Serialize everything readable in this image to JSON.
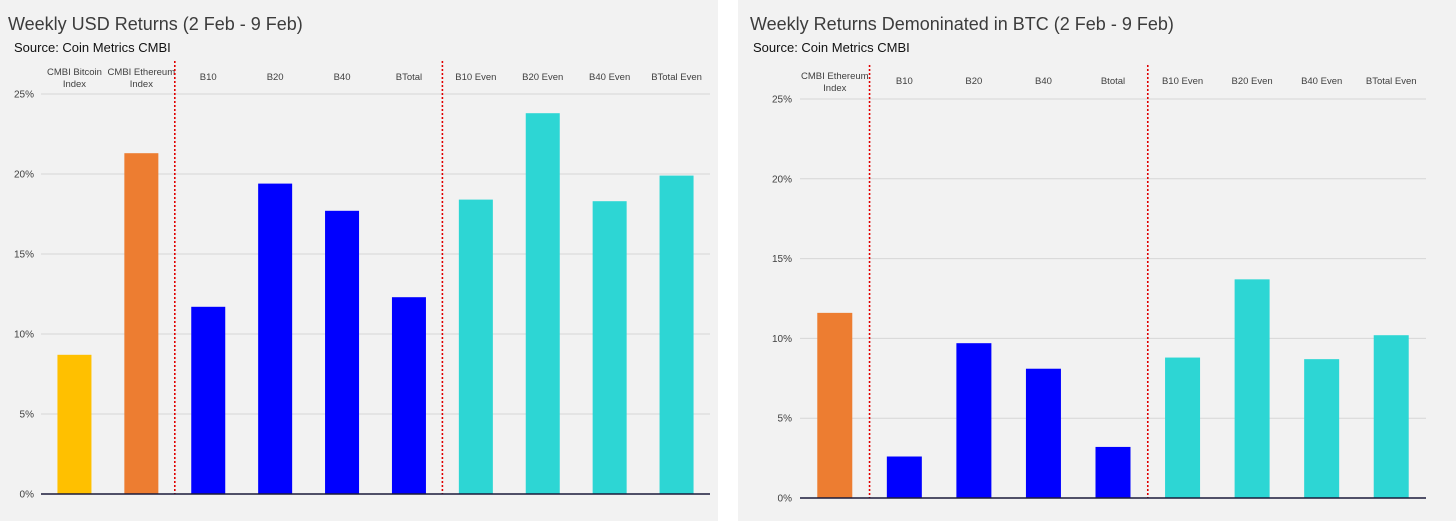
{
  "chart_data": [
    {
      "type": "bar",
      "title": "Weekly USD Returns (2 Feb - 9 Feb)",
      "subtitle": "Source: Coin Metrics CMBI",
      "categories": [
        "CMBI Bitcoin Index",
        "CMBI Ethereum Index",
        "B10",
        "B20",
        "B40",
        "BTotal",
        "B10 Even",
        "B20 Even",
        "B40 Even",
        "BTotal Even"
      ],
      "values": [
        8.7,
        21.3,
        11.7,
        19.4,
        17.7,
        12.3,
        18.4,
        23.8,
        18.3,
        19.9
      ],
      "colors": [
        "#ffc000",
        "#ed7d31",
        "#0000ff",
        "#0000ff",
        "#0000ff",
        "#0000ff",
        "#2dd6d4",
        "#2dd6d4",
        "#2dd6d4",
        "#2dd6d4"
      ],
      "ylim": [
        0,
        25
      ],
      "yticks": [
        "0%",
        "5%",
        "10%",
        "15%",
        "20%",
        "25%"
      ],
      "xlabel": "",
      "ylabel": "",
      "grid": true,
      "separators_after": [
        1,
        5
      ],
      "separator_color": "#e00000"
    },
    {
      "type": "bar",
      "title": "Weekly Returns Demoninated in BTC (2 Feb - 9 Feb)",
      "subtitle": "Source: Coin Metrics CMBI",
      "categories": [
        "CMBI Ethereum Index",
        "B10",
        "B20",
        "B40",
        "Btotal",
        "B10 Even",
        "B20 Even",
        "B40 Even",
        "BTotal Even"
      ],
      "values": [
        11.6,
        2.6,
        9.7,
        8.1,
        3.2,
        8.8,
        13.7,
        8.7,
        10.2
      ],
      "colors": [
        "#ed7d31",
        "#0000ff",
        "#0000ff",
        "#0000ff",
        "#0000ff",
        "#2dd6d4",
        "#2dd6d4",
        "#2dd6d4",
        "#2dd6d4"
      ],
      "ylim": [
        0,
        25
      ],
      "yticks": [
        "0%",
        "5%",
        "10%",
        "15%",
        "20%",
        "25%"
      ],
      "xlabel": "",
      "ylabel": "",
      "grid": true,
      "separators_after": [
        0,
        4
      ],
      "separator_color": "#e00000"
    }
  ]
}
